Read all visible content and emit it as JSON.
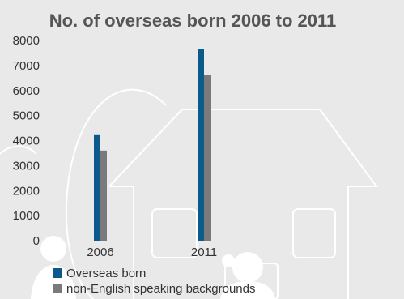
{
  "chart_data": {
    "type": "bar",
    "title": "No. of overseas born 2006 to 2011",
    "categories": [
      "2006",
      "2011"
    ],
    "series": [
      {
        "name": "Overseas born",
        "values": [
          4250,
          7650
        ],
        "color": "#0b5a8c"
      },
      {
        "name": "non-English speaking backgrounds",
        "values": [
          3600,
          6620
        ],
        "color": "#7a7a7a"
      }
    ],
    "ylim": [
      0,
      8000
    ],
    "yticks": [
      0,
      1000,
      2000,
      3000,
      4000,
      5000,
      6000,
      7000,
      8000
    ],
    "grid": false,
    "legend_position": "bottom-left"
  },
  "colors": {
    "background": "#e9e9e9",
    "decoration": "#ffffff"
  },
  "background_icons": [
    "house-outline-icon",
    "person-icon",
    "person-icon",
    "ellipse-outline-icon"
  ]
}
